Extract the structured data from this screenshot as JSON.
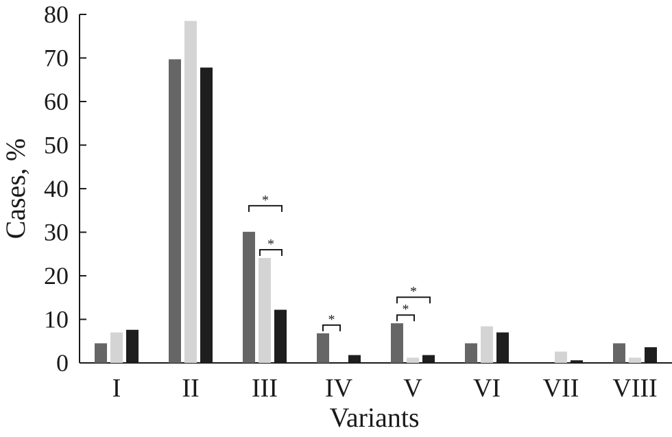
{
  "chart_data": {
    "type": "bar",
    "xlabel": "Variants",
    "ylabel": "Cases, %",
    "ylim": [
      0,
      80
    ],
    "yticks": [
      0,
      10,
      20,
      30,
      40,
      50,
      60,
      70,
      80
    ],
    "grid": false,
    "categories": [
      "I",
      "II",
      "III",
      "IV",
      "V",
      "VI",
      "VII",
      "VIII"
    ],
    "series": [
      {
        "color": "#666666",
        "values": [
          4.5,
          69.7,
          30.1,
          6.8,
          9.1,
          4.5,
          0,
          4.5
        ]
      },
      {
        "color": "#d4d4d4",
        "values": [
          7.0,
          78.5,
          24.1,
          0,
          1.2,
          8.4,
          2.6,
          1.2
        ]
      },
      {
        "color": "#1e1e1e",
        "values": [
          7.6,
          67.8,
          12.2,
          1.8,
          1.8,
          7.0,
          0.6,
          3.6
        ]
      }
    ],
    "significance": [
      {
        "category": "III",
        "from_series": 0,
        "to_series": 2,
        "label": "*"
      },
      {
        "category": "III",
        "from_series": 1,
        "to_series": 2,
        "label": "*"
      },
      {
        "category": "IV",
        "from_series": 0,
        "to_series": 1,
        "label": "*"
      },
      {
        "category": "V",
        "from_series": 0,
        "to_series": 1,
        "label": "*"
      },
      {
        "category": "V",
        "from_series": 0,
        "to_series": 2,
        "label": "*"
      }
    ]
  }
}
